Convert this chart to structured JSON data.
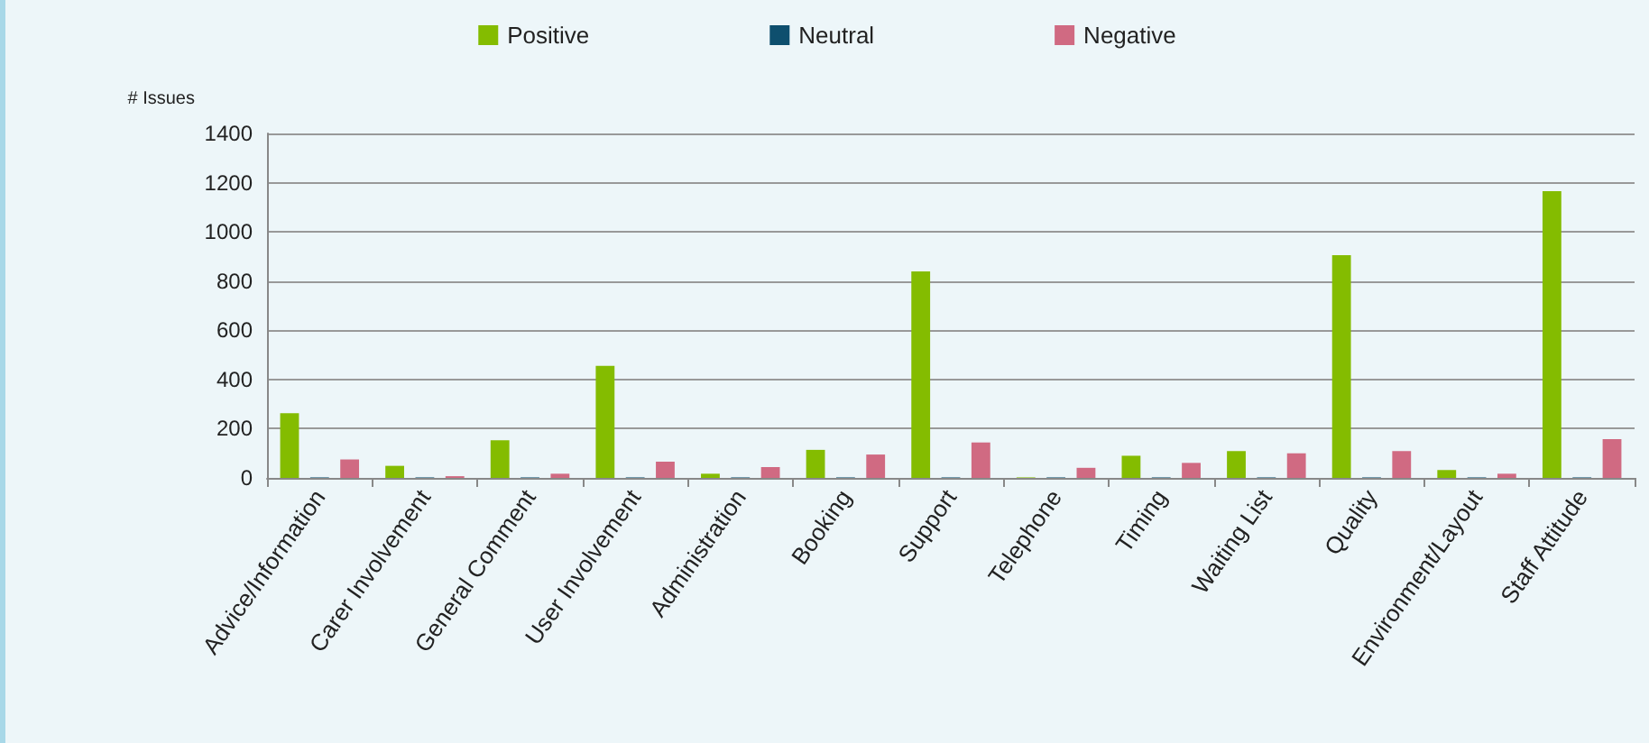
{
  "chart_data": {
    "type": "bar",
    "ylabel": "# Issues",
    "categories": [
      "Advice/Information",
      "Carer Involvement",
      "General Comment",
      "User Involvement",
      "Administration",
      "Booking",
      "Support",
      "Telephone",
      "Timing",
      "Waiting List",
      "Quality",
      "Environment/Layout",
      "Staff Attitude"
    ],
    "series": [
      {
        "name": "Positive",
        "color": "#84bc00",
        "values": [
          263,
          49,
          153,
          455,
          17,
          114,
          839,
          2,
          90,
          109,
          905,
          32,
          1165
        ]
      },
      {
        "name": "Neutral",
        "color": "#0e4f6e",
        "values": [
          2,
          2,
          2,
          2,
          2,
          2,
          2,
          2,
          2,
          2,
          2,
          2,
          2
        ]
      },
      {
        "name": "Negative",
        "color": "#d06a82",
        "values": [
          75,
          7,
          17,
          66,
          44,
          95,
          144,
          41,
          61,
          100,
          109,
          17,
          158
        ]
      }
    ],
    "ylim": [
      0,
      1400
    ],
    "yticks": [
      0,
      200,
      400,
      600,
      800,
      1000,
      1200,
      1400
    ],
    "grid": "y",
    "legend": "top"
  }
}
